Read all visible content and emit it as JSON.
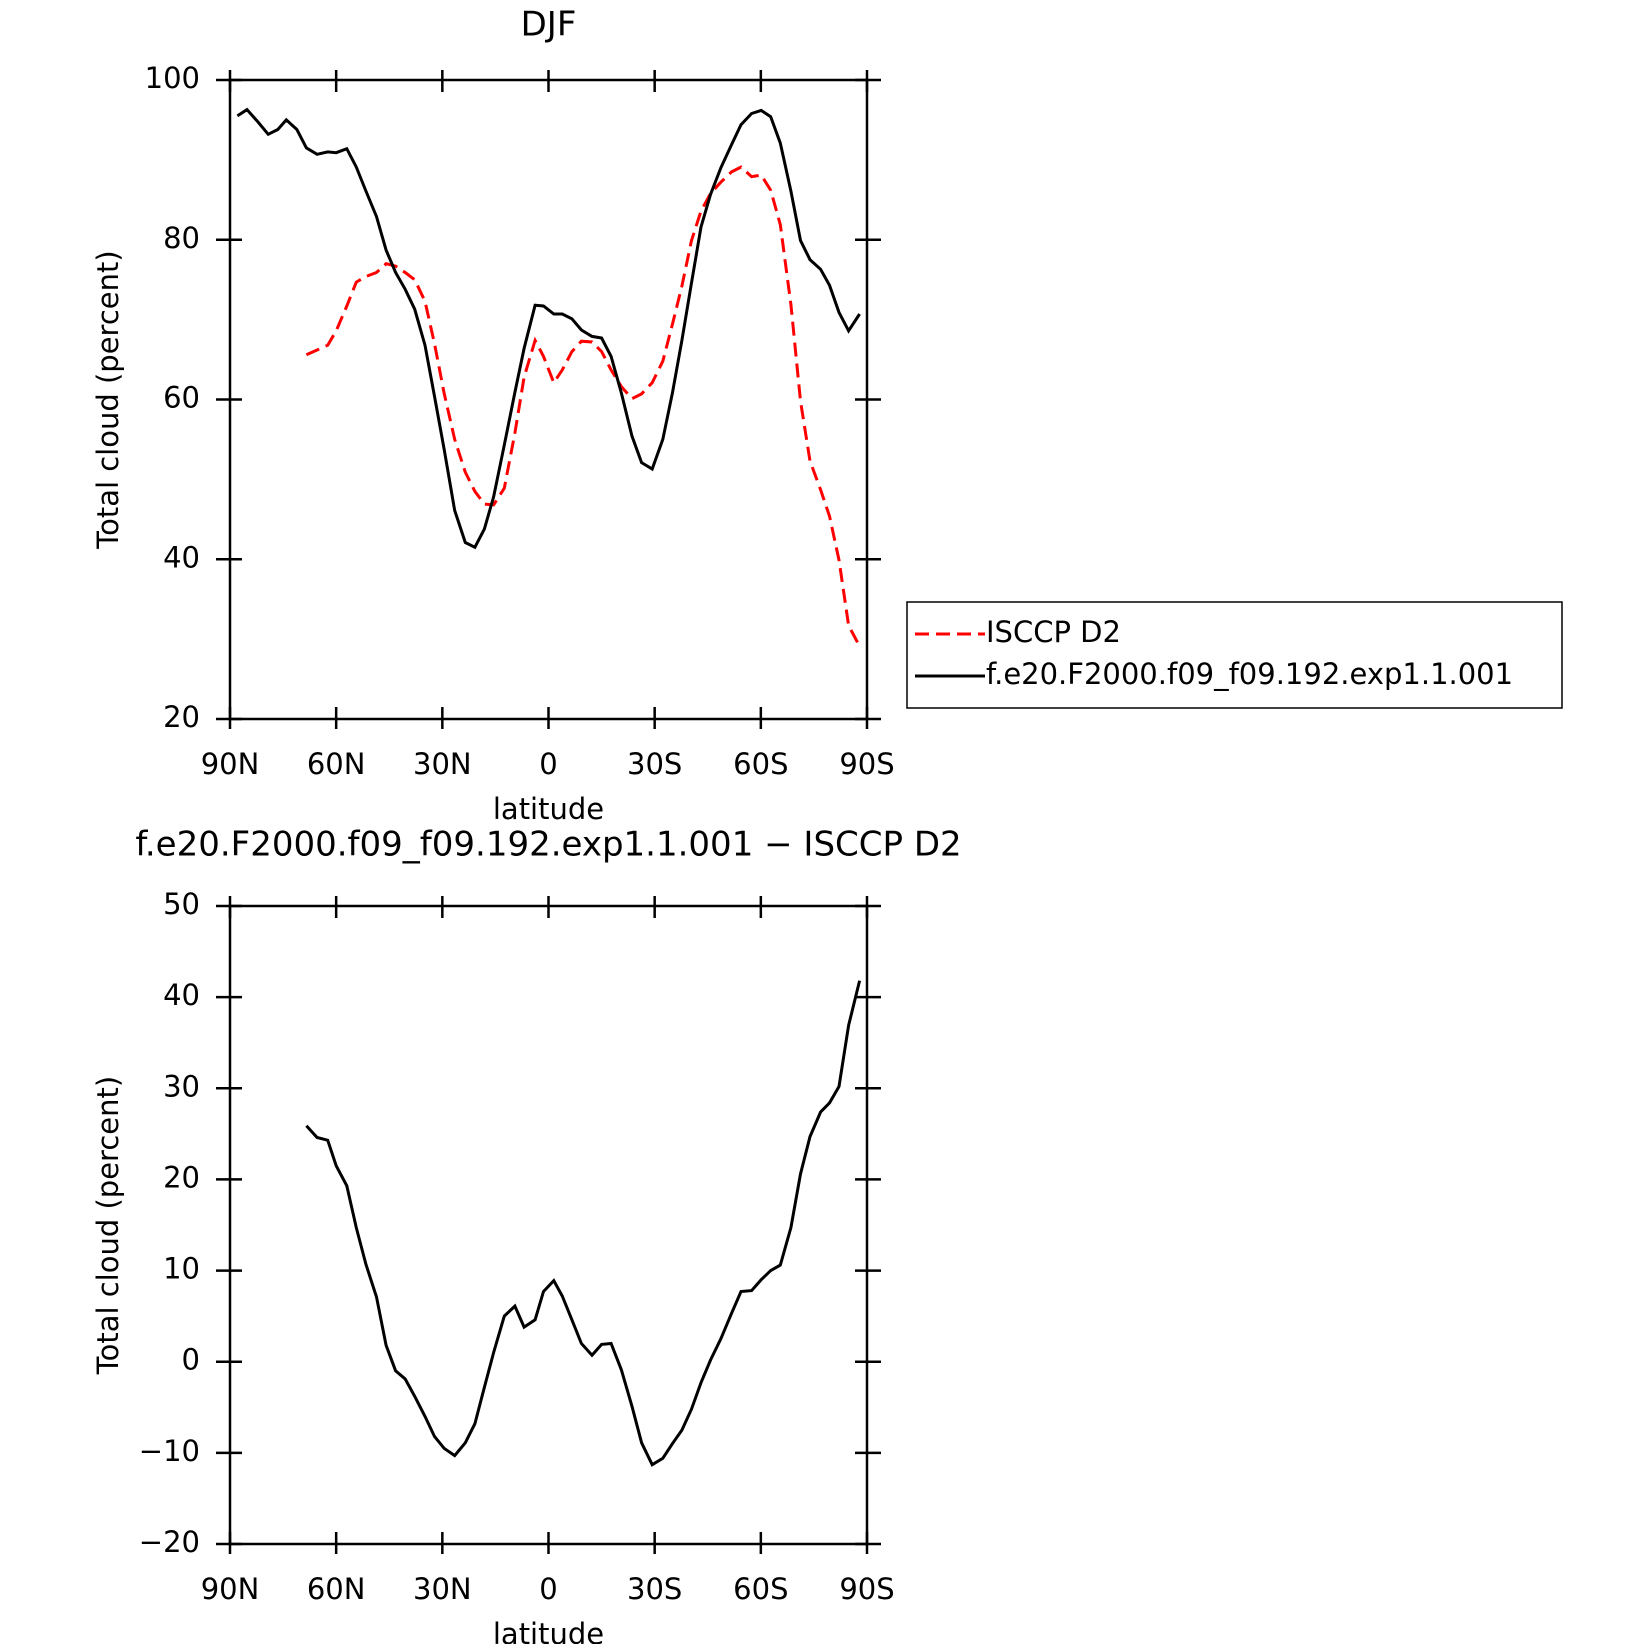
{
  "chart_data": [
    {
      "type": "line",
      "title": "DJF",
      "x_label": "latitude",
      "y_label": "Total cloud (percent)",
      "x": [
        87.9,
        85.2,
        82.2,
        79.2,
        76.5,
        74.1,
        71.1,
        68.4,
        65.4,
        62.4,
        60.0,
        57.0,
        54.3,
        51.6,
        48.6,
        45.9,
        43.2,
        40.5,
        37.8,
        34.9,
        32.2,
        29.5,
        26.5,
        23.5,
        20.8,
        18.1,
        15.5,
        12.5,
        9.5,
        6.9,
        3.8,
        1.4,
        -1.5,
        -3.9,
        -6.6,
        -9.3,
        -12.3,
        -15.0,
        -17.7,
        -20.6,
        -23.6,
        -26.3,
        -29.3,
        -32.3,
        -35.0,
        -37.7,
        -40.4,
        -43.1,
        -45.8,
        -48.7,
        -51.7,
        -54.4,
        -57.4,
        -60.1,
        -62.8,
        -65.5,
        -68.5,
        -71.2,
        -73.9,
        -76.9,
        -79.4,
        -82.1,
        -84.8,
        -87.9
      ],
      "series": [
        {
          "name": "ISCCP D2",
          "color": "#ff0000",
          "dashed": true,
          "values": [
            null,
            null,
            null,
            null,
            null,
            null,
            null,
            65.6,
            66.2,
            66.8,
            68.6,
            71.7,
            74.7,
            75.4,
            75.9,
            77.0,
            76.7,
            75.9,
            75.0,
            72.3,
            67.0,
            60.8,
            55.0,
            50.9,
            48.5,
            46.9,
            46.8,
            48.9,
            55.8,
            62.8,
            67.4,
            65.4,
            62.1,
            63.7,
            66.0,
            67.3,
            67.2,
            66.0,
            63.7,
            61.6,
            60.1,
            60.7,
            62.1,
            64.8,
            69.4,
            74.2,
            79.9,
            83.6,
            85.8,
            87.2,
            88.5,
            89.1,
            87.9,
            88.1,
            86.2,
            81.9,
            71.9,
            59.8,
            52.3,
            48.7,
            45.4,
            39.9,
            31.7,
            29.1
          ]
        },
        {
          "name": "f.e20.F2000.f09_f09.192.exp1.1.001",
          "color": "#000000",
          "dashed": false,
          "values": [
            95.5,
            96.3,
            94.8,
            93.2,
            93.8,
            95.0,
            93.8,
            91.5,
            90.7,
            91.0,
            90.9,
            91.4,
            89.1,
            86.1,
            82.9,
            78.7,
            75.9,
            73.8,
            71.3,
            66.8,
            60.4,
            53.8,
            46.1,
            42.1,
            41.5,
            43.8,
            47.8,
            54.3,
            60.9,
            66.4,
            71.8,
            71.7,
            70.7,
            70.7,
            70.1,
            68.7,
            67.9,
            67.7,
            65.4,
            60.8,
            55.4,
            52.1,
            51.3,
            55.0,
            60.8,
            67.4,
            74.6,
            81.6,
            85.7,
            89.0,
            91.9,
            94.4,
            95.8,
            96.2,
            95.4,
            92.1,
            86.1,
            79.9,
            77.5,
            76.3,
            74.3,
            70.9,
            68.6,
            70.7
          ]
        }
      ],
      "xlim": [
        90,
        -90
      ],
      "xticks": [
        {
          "value": 90,
          "label": "90N"
        },
        {
          "value": 60,
          "label": "60N"
        },
        {
          "value": 30,
          "label": "30N"
        },
        0,
        {
          "value": -30,
          "label": "30S"
        },
        {
          "value": -60,
          "label": "60S"
        },
        {
          "value": -90,
          "label": "90S"
        }
      ],
      "ylim": [
        20,
        100
      ],
      "yticks": [
        20,
        40,
        60,
        80,
        100
      ],
      "legend": "outside right"
    },
    {
      "type": "line",
      "title": "f.e20.F2000.f09_f09.192.exp1.1.001 − ISCCP D2",
      "x_label": "latitude",
      "y_label": "Total cloud (percent)",
      "x": [
        87.9,
        85.2,
        82.2,
        79.2,
        76.5,
        74.1,
        71.1,
        68.4,
        65.4,
        62.4,
        60.0,
        57.0,
        54.3,
        51.6,
        48.6,
        45.9,
        43.2,
        40.5,
        37.8,
        34.9,
        32.2,
        29.5,
        26.5,
        23.5,
        20.8,
        18.1,
        15.5,
        12.5,
        9.5,
        6.9,
        3.8,
        1.4,
        -1.5,
        -3.9,
        -6.6,
        -9.3,
        -12.3,
        -15.0,
        -17.7,
        -20.6,
        -23.6,
        -26.3,
        -29.3,
        -32.3,
        -35.0,
        -37.7,
        -40.4,
        -43.1,
        -45.8,
        -48.7,
        -51.7,
        -54.4,
        -57.4,
        -60.1,
        -62.8,
        -65.5,
        -68.5,
        -71.2,
        -73.9,
        -76.9,
        -79.4,
        -82.1,
        -84.8,
        -87.9
      ],
      "series": [
        {
          "color": "#000000",
          "dashed": false,
          "values": [
            null,
            null,
            null,
            null,
            null,
            null,
            null,
            25.9,
            24.6,
            24.3,
            21.5,
            19.3,
            14.7,
            10.7,
            7.1,
            1.8,
            -1.0,
            -1.9,
            -3.8,
            -6.0,
            -8.2,
            -9.5,
            -10.3,
            -8.9,
            -6.8,
            -2.8,
            1.0,
            5.0,
            6.1,
            3.8,
            4.6,
            7.7,
            8.9,
            7.2,
            4.6,
            2.0,
            0.7,
            1.9,
            2.0,
            -0.9,
            -4.9,
            -8.9,
            -11.3,
            -10.6,
            -9.0,
            -7.5,
            -5.2,
            -2.3,
            0.2,
            2.5,
            5.3,
            7.7,
            7.8,
            9.0,
            10.0,
            10.6,
            14.7,
            20.6,
            24.7,
            27.4,
            28.4,
            30.2,
            36.9,
            41.8
          ]
        }
      ],
      "xlim": [
        90,
        -90
      ],
      "xticks": [
        {
          "value": 90,
          "label": "90N"
        },
        {
          "value": 60,
          "label": "60N"
        },
        {
          "value": 30,
          "label": "30N"
        },
        0,
        {
          "value": -30,
          "label": "30S"
        },
        {
          "value": -60,
          "label": "60S"
        },
        {
          "value": -90,
          "label": "90S"
        }
      ],
      "ylim": [
        -20,
        50
      ],
      "yticks": [
        {
          "value": -20,
          "label": "−20"
        },
        {
          "value": -10,
          "label": "−10"
        },
        0,
        10,
        20,
        30,
        40,
        50
      ]
    }
  ]
}
